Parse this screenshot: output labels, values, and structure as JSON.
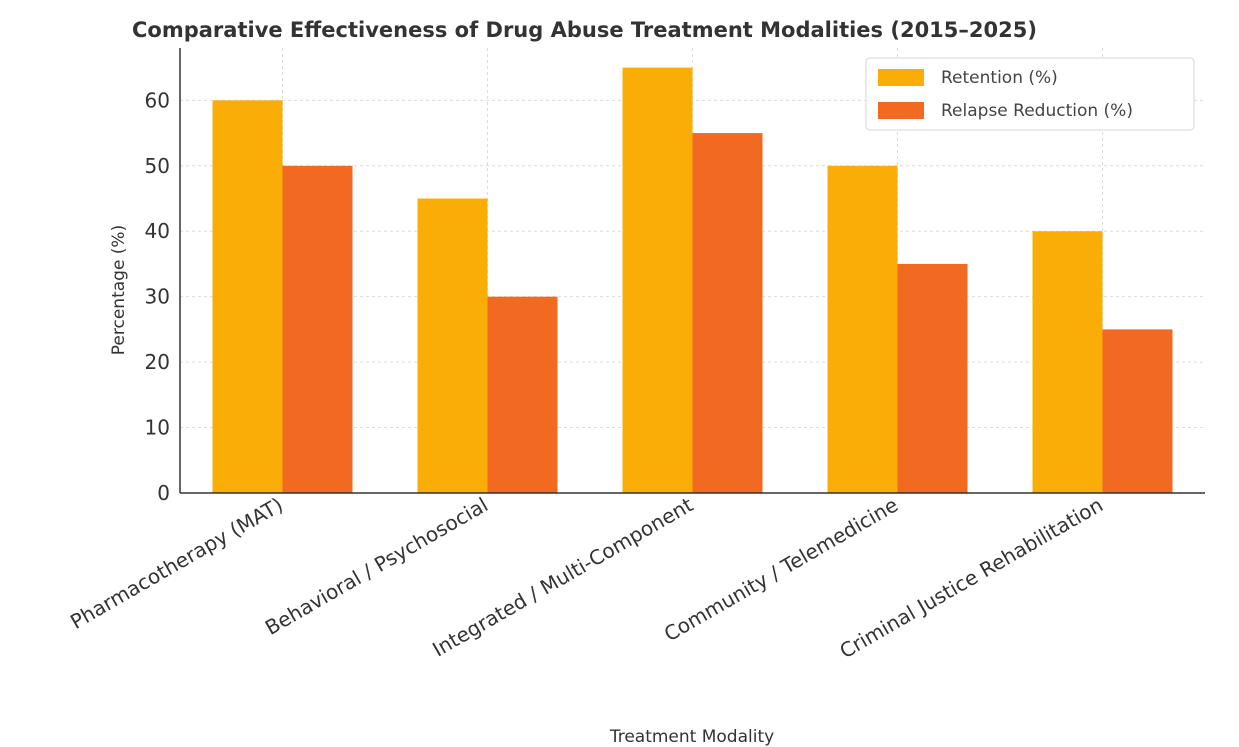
{
  "chart_data": {
    "type": "bar",
    "title": "Comparative Effectiveness of Drug Abuse Treatment Modalities (2015–2025)",
    "xlabel": "Treatment Modality",
    "ylabel": "Percentage (%)",
    "categories": [
      "Pharmacotherapy (MAT)",
      "Behavioral / Psychosocial",
      "Integrated / Multi-Component",
      "Community / Telemedicine",
      "Criminal Justice Rehabilitation"
    ],
    "series": [
      {
        "name": "Retention (%)",
        "values": [
          60,
          45,
          65,
          50,
          40
        ],
        "color": "#f9ad06"
      },
      {
        "name": "Relapse Reduction (%)",
        "values": [
          50,
          30,
          55,
          35,
          25
        ],
        "color": "#f26922"
      }
    ],
    "ylim": [
      0,
      68
    ],
    "yticks": [
      0,
      10,
      20,
      30,
      40,
      50,
      60
    ],
    "grid": true,
    "legend_position": "top-right"
  }
}
